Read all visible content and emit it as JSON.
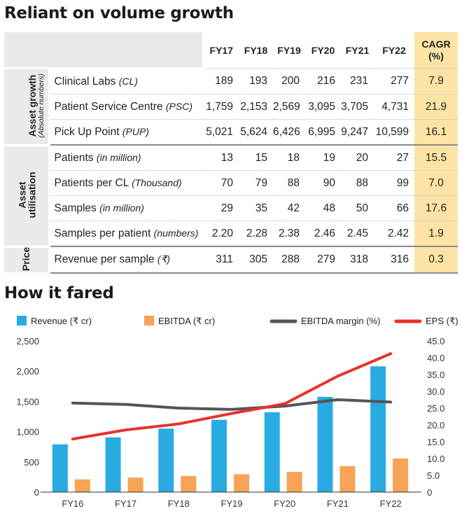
{
  "table_title": "Reliant on volume growth",
  "chart_title": "How it fared",
  "table": {
    "columns": [
      "FY17",
      "FY18",
      "FY19",
      "FY20",
      "FY21",
      "FY22"
    ],
    "cagr_header_line1": "CAGR",
    "cagr_header_line2": "(%)",
    "groups": [
      {
        "label": "Asset growth",
        "sublabel": "(Absolute numbers)",
        "rows": [
          {
            "label": "Clinical Labs ",
            "unit": "(CL)",
            "values": [
              "189",
              "193",
              "200",
              "216",
              "231",
              "277"
            ],
            "cagr": "7.9"
          },
          {
            "label": "Patient Service Centre ",
            "unit": "(PSC)",
            "values": [
              "1,759",
              "2,153",
              "2,569",
              "3,095",
              "3,705",
              "4,731"
            ],
            "cagr": "21.9"
          },
          {
            "label": "Pick Up Point ",
            "unit": "(PUP)",
            "values": [
              "5,021",
              "5,624",
              "6,426",
              "6,995",
              "9,247",
              "10,599"
            ],
            "cagr": "16.1"
          }
        ]
      },
      {
        "label": "Asset",
        "sublabel": "utilisation",
        "rows": [
          {
            "label": "Patients ",
            "unit": "(in million)",
            "values": [
              "13",
              "15",
              "18",
              "19",
              "20",
              "27"
            ],
            "cagr": "15.5"
          },
          {
            "label": "Patients per CL ",
            "unit": "(Thousand)",
            "values": [
              "70",
              "79",
              "88",
              "90",
              "88",
              "99"
            ],
            "cagr": "7.0"
          },
          {
            "label": "Samples ",
            "unit": "(in million)",
            "values": [
              "29",
              "35",
              "42",
              "48",
              "50",
              "66"
            ],
            "cagr": "17.6"
          },
          {
            "label": "Samples per patient ",
            "unit": "(numbers)",
            "values": [
              "2.20",
              "2.28",
              "2.38",
              "2.46",
              "2.45",
              "2.42"
            ],
            "cagr": "1.9"
          }
        ]
      },
      {
        "label": "Price",
        "sublabel": "",
        "rows": [
          {
            "label": "Revenue per sample ",
            "unit": "(₹)",
            "values": [
              "311",
              "305",
              "288",
              "279",
              "318",
              "316"
            ],
            "cagr": "0.3"
          }
        ]
      }
    ]
  },
  "chart_data": {
    "type": "bar",
    "categories": [
      "FY16",
      "FY17",
      "FY18",
      "FY19",
      "FY20",
      "FY21",
      "FY22"
    ],
    "series": [
      {
        "name": "Revenue (₹ cr)",
        "kind": "bar",
        "axis": "left",
        "color": "#29abe2",
        "values": [
          790,
          905,
          1050,
          1195,
          1320,
          1575,
          2080
        ]
      },
      {
        "name": "EBITDA (₹ cr)",
        "kind": "bar",
        "axis": "left",
        "color": "#f7a456",
        "values": [
          210,
          240,
          265,
          295,
          335,
          430,
          555
        ]
      },
      {
        "name": "EBITDA margin (%)",
        "kind": "line",
        "axis": "right",
        "color": "#555555",
        "values": [
          26.5,
          26.1,
          25.0,
          24.6,
          25.6,
          27.5,
          26.8
        ]
      },
      {
        "name": "EPS (₹)",
        "kind": "line",
        "axis": "right",
        "color": "#e8312a",
        "values": [
          15.8,
          18.5,
          20.3,
          23.4,
          26.3,
          34.5,
          41.2
        ]
      }
    ],
    "y_left": {
      "min": 0,
      "max": 2500,
      "ticks": [
        "0",
        "500",
        "1,000",
        "1,500",
        "2,000",
        "2,500"
      ]
    },
    "y_right": {
      "min": 0,
      "max": 45,
      "ticks": [
        "0",
        "5.0",
        "10.0",
        "15.0",
        "20.0",
        "25.0",
        "30.0",
        "35.0",
        "40.0",
        "45.0"
      ]
    },
    "legend_position": "top",
    "grid": false
  }
}
